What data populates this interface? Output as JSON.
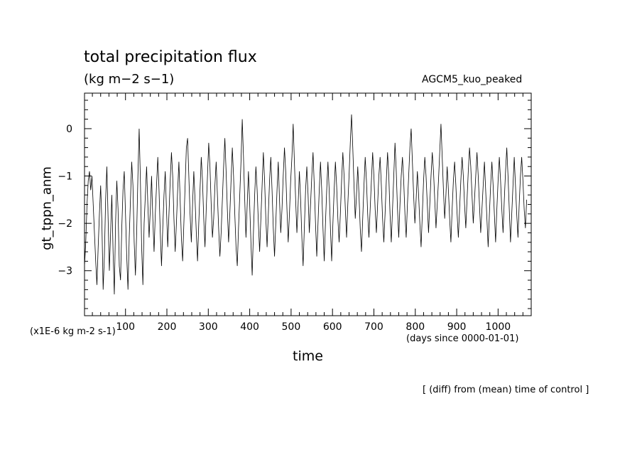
{
  "chart_data": {
    "type": "line",
    "title": "total precipitation flux",
    "units": "(kg m−2 s−1)",
    "run_label": "AGCM5_kuo_peaked",
    "ylabel": "gt_tppn_anm",
    "y_scale_label": "(x1E-6 kg m-2 s-1)",
    "xlabel": "time",
    "x_units_label": "(days since 0000-01-01)",
    "note": "[ (diff) from (mean) time of control ]",
    "xlim": [
      1,
      1080
    ],
    "ylim": [
      -3.95,
      0.75
    ],
    "x_ticks": [
      100,
      200,
      300,
      400,
      500,
      600,
      700,
      800,
      900,
      1000
    ],
    "x_tick_labels": [
      "100",
      "200",
      "300",
      "400",
      "500",
      "600",
      "700",
      "800",
      "900",
      "1000"
    ],
    "y_ticks": [
      -3,
      -2,
      -1,
      0
    ],
    "y_tick_labels": [
      "−3",
      "−2",
      "−1",
      "0"
    ],
    "grid": false,
    "line_color": "#000000",
    "series": [
      {
        "x_start": 1,
        "x_step": 3,
        "values": [
          -2.9,
          -2.4,
          -1.6,
          -1.1,
          -0.9,
          -1.3,
          -1.0,
          -1.6,
          -2.2,
          -2.8,
          -3.3,
          -2.5,
          -1.8,
          -1.2,
          -2.0,
          -3.4,
          -2.7,
          -1.5,
          -0.8,
          -1.9,
          -3.0,
          -2.2,
          -1.4,
          -2.6,
          -3.5,
          -2.0,
          -1.1,
          -1.7,
          -2.9,
          -3.2,
          -2.1,
          -1.3,
          -0.9,
          -1.8,
          -2.7,
          -3.4,
          -2.3,
          -1.5,
          -0.7,
          -1.2,
          -2.4,
          -3.1,
          -2.2,
          -1.0,
          0.0,
          -1.1,
          -2.5,
          -3.3,
          -2.0,
          -1.4,
          -0.8,
          -1.6,
          -2.3,
          -1.7,
          -1.0,
          -1.9,
          -2.6,
          -1.8,
          -1.2,
          -0.6,
          -1.3,
          -2.2,
          -2.9,
          -2.1,
          -1.4,
          -0.9,
          -1.7,
          -2.5,
          -1.8,
          -1.1,
          -0.5,
          -1.0,
          -1.9,
          -2.6,
          -2.0,
          -1.3,
          -0.7,
          -1.5,
          -2.3,
          -2.8,
          -2.0,
          -1.2,
          -0.4,
          -0.2,
          -1.0,
          -1.8,
          -2.4,
          -1.6,
          -0.9,
          -1.5,
          -2.2,
          -2.8,
          -2.0,
          -1.3,
          -0.6,
          -1.1,
          -1.9,
          -2.5,
          -1.7,
          -1.0,
          -0.3,
          -0.8,
          -1.6,
          -2.3,
          -1.9,
          -1.2,
          -0.7,
          -1.4,
          -2.1,
          -2.7,
          -2.2,
          -1.5,
          -0.8,
          -0.2,
          -0.9,
          -1.7,
          -2.4,
          -1.8,
          -1.1,
          -0.4,
          -1.0,
          -1.8,
          -2.5,
          -2.9,
          -2.1,
          -1.4,
          -0.7,
          0.2,
          -0.6,
          -1.5,
          -2.3,
          -1.6,
          -0.9,
          -1.6,
          -2.4,
          -3.1,
          -2.2,
          -1.4,
          -0.8,
          -1.3,
          -2.0,
          -2.6,
          -1.9,
          -1.2,
          -0.5,
          -1.1,
          -1.9,
          -2.5,
          -1.8,
          -1.1,
          -0.6,
          -1.3,
          -2.1,
          -2.7,
          -2.0,
          -1.3,
          -0.7,
          -1.5,
          -2.2,
          -1.7,
          -1.0,
          -0.4,
          -0.9,
          -1.7,
          -2.4,
          -1.8,
          -1.1,
          -0.6,
          0.1,
          -0.7,
          -1.5,
          -2.2,
          -1.6,
          -0.9,
          -1.5,
          -2.3,
          -2.9,
          -2.1,
          -1.3,
          -0.8,
          -1.4,
          -2.2,
          -1.6,
          -1.0,
          -0.5,
          -1.2,
          -2.0,
          -2.7,
          -2.0,
          -1.3,
          -0.7,
          -1.3,
          -2.1,
          -2.8,
          -2.0,
          -1.3,
          -0.7,
          -1.3,
          -2.1,
          -2.8,
          -2.0,
          -1.3,
          -0.7,
          -1.2,
          -1.9,
          -2.4,
          -1.8,
          -1.1,
          -0.5,
          -1.0,
          -1.7,
          -2.3,
          -1.6,
          -1.0,
          -0.3,
          0.3,
          -0.4,
          -1.2,
          -1.9,
          -1.4,
          -0.8,
          -1.4,
          -2.1,
          -2.6,
          -1.9,
          -1.2,
          -0.6,
          -1.1,
          -1.8,
          -2.3,
          -1.7,
          -1.1,
          -0.5,
          -1.0,
          -1.7,
          -2.2,
          -1.6,
          -1.0,
          -0.6,
          -1.2,
          -1.9,
          -2.4,
          -1.8,
          -1.1,
          -0.5,
          -1.0,
          -1.8,
          -2.4,
          -1.7,
          -1.0,
          -0.3,
          -0.9,
          -1.7,
          -2.3,
          -1.6,
          -1.0,
          -0.6,
          -1.1,
          -1.8,
          -2.3,
          -1.6,
          -1.0,
          -0.4,
          0.0,
          -0.7,
          -1.4,
          -2.0,
          -1.5,
          -0.9,
          -1.4,
          -2.0,
          -2.5,
          -1.8,
          -1.1,
          -0.6,
          -1.0,
          -1.6,
          -2.2,
          -1.6,
          -1.0,
          -0.5,
          -0.9,
          -1.5,
          -2.1,
          -1.6,
          -1.1,
          -0.5,
          0.1,
          -0.6,
          -1.3,
          -1.9,
          -1.4,
          -0.8,
          -1.3,
          -1.9,
          -2.4,
          -1.7,
          -1.1,
          -0.7,
          -1.2,
          -1.8,
          -2.3,
          -1.7,
          -1.1,
          -0.6,
          -1.0,
          -1.6,
          -2.1,
          -1.5,
          -0.9,
          -0.4,
          -0.8,
          -1.4,
          -2.0,
          -1.5,
          -1.0,
          -0.5,
          -1.0,
          -1.6,
          -2.2,
          -1.7,
          -1.2,
          -0.7,
          -1.3,
          -1.9,
          -2.5,
          -1.8,
          -1.2,
          -0.7,
          -1.2,
          -1.8,
          -2.4,
          -1.7,
          -1.1,
          -0.6,
          -1.1,
          -1.7,
          -2.2,
          -1.5,
          -0.9,
          -0.4,
          -1.0,
          -1.7,
          -2.4,
          -1.8,
          -1.2,
          -0.6,
          -1.2,
          -1.8,
          -2.3,
          -1.6,
          -1.0,
          -0.6,
          -1.1,
          -1.7,
          -2.1,
          -1.5
        ]
      }
    ]
  }
}
